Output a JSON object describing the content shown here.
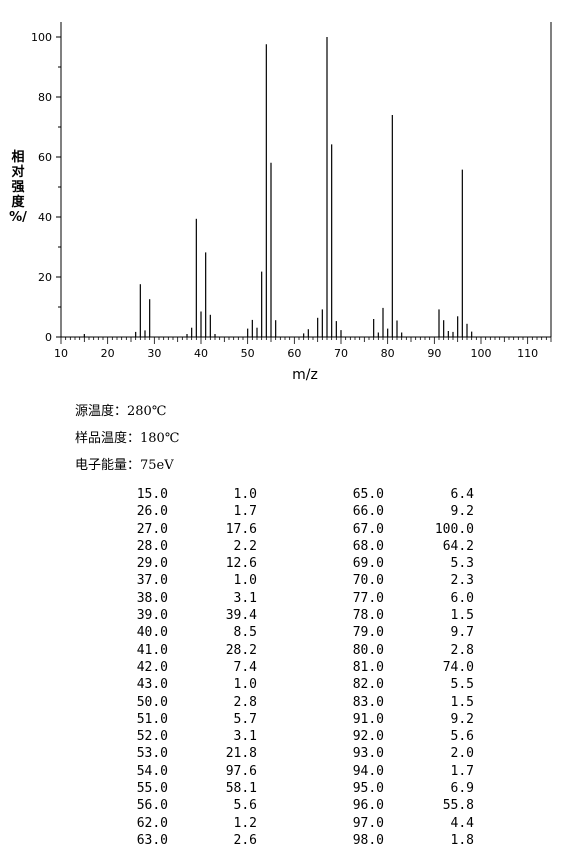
{
  "chart_data": {
    "type": "bar",
    "xlabel": "m/z",
    "ylabel_chars": [
      "相",
      "对",
      "强",
      "度",
      "%/"
    ],
    "xlim": [
      10,
      115
    ],
    "ylim": [
      0,
      100
    ],
    "x_ticks": [
      10,
      20,
      30,
      40,
      50,
      60,
      70,
      80,
      90,
      100,
      110
    ],
    "y_ticks": [
      0,
      20,
      40,
      60,
      80,
      100
    ],
    "peaks": [
      {
        "mz": 15.0,
        "intensity": 1.0
      },
      {
        "mz": 26.0,
        "intensity": 1.7
      },
      {
        "mz": 27.0,
        "intensity": 17.6
      },
      {
        "mz": 28.0,
        "intensity": 2.2
      },
      {
        "mz": 29.0,
        "intensity": 12.6
      },
      {
        "mz": 37.0,
        "intensity": 1.0
      },
      {
        "mz": 38.0,
        "intensity": 3.1
      },
      {
        "mz": 39.0,
        "intensity": 39.4
      },
      {
        "mz": 40.0,
        "intensity": 8.5
      },
      {
        "mz": 41.0,
        "intensity": 28.2
      },
      {
        "mz": 42.0,
        "intensity": 7.4
      },
      {
        "mz": 43.0,
        "intensity": 1.0
      },
      {
        "mz": 50.0,
        "intensity": 2.8
      },
      {
        "mz": 51.0,
        "intensity": 5.7
      },
      {
        "mz": 52.0,
        "intensity": 3.1
      },
      {
        "mz": 53.0,
        "intensity": 21.8
      },
      {
        "mz": 54.0,
        "intensity": 97.6
      },
      {
        "mz": 55.0,
        "intensity": 58.1
      },
      {
        "mz": 56.0,
        "intensity": 5.6
      },
      {
        "mz": 62.0,
        "intensity": 1.2
      },
      {
        "mz": 63.0,
        "intensity": 2.6
      },
      {
        "mz": 65.0,
        "intensity": 6.4
      },
      {
        "mz": 66.0,
        "intensity": 9.2
      },
      {
        "mz": 67.0,
        "intensity": 100.0
      },
      {
        "mz": 68.0,
        "intensity": 64.2
      },
      {
        "mz": 69.0,
        "intensity": 5.3
      },
      {
        "mz": 70.0,
        "intensity": 2.3
      },
      {
        "mz": 77.0,
        "intensity": 6.0
      },
      {
        "mz": 78.0,
        "intensity": 1.5
      },
      {
        "mz": 79.0,
        "intensity": 9.7
      },
      {
        "mz": 80.0,
        "intensity": 2.8
      },
      {
        "mz": 81.0,
        "intensity": 74.0
      },
      {
        "mz": 82.0,
        "intensity": 5.5
      },
      {
        "mz": 83.0,
        "intensity": 1.5
      },
      {
        "mz": 91.0,
        "intensity": 9.2
      },
      {
        "mz": 92.0,
        "intensity": 5.6
      },
      {
        "mz": 93.0,
        "intensity": 2.0
      },
      {
        "mz": 94.0,
        "intensity": 1.7
      },
      {
        "mz": 95.0,
        "intensity": 6.9
      },
      {
        "mz": 96.0,
        "intensity": 55.8
      },
      {
        "mz": 97.0,
        "intensity": 4.4
      },
      {
        "mz": 98.0,
        "intensity": 1.8
      }
    ]
  },
  "conditions": {
    "source_temp": "源温度：280℃",
    "sample_temp": "样品温度：180℃",
    "electron_energy": "电子能量：75eV"
  },
  "peak_table": [
    [
      "15.0",
      "1.0",
      "65.0",
      "6.4"
    ],
    [
      "26.0",
      "1.7",
      "66.0",
      "9.2"
    ],
    [
      "27.0",
      "17.6",
      "67.0",
      "100.0"
    ],
    [
      "28.0",
      "2.2",
      "68.0",
      "64.2"
    ],
    [
      "29.0",
      "12.6",
      "69.0",
      "5.3"
    ],
    [
      "37.0",
      "1.0",
      "70.0",
      "2.3"
    ],
    [
      "38.0",
      "3.1",
      "77.0",
      "6.0"
    ],
    [
      "39.0",
      "39.4",
      "78.0",
      "1.5"
    ],
    [
      "40.0",
      "8.5",
      "79.0",
      "9.7"
    ],
    [
      "41.0",
      "28.2",
      "80.0",
      "2.8"
    ],
    [
      "42.0",
      "7.4",
      "81.0",
      "74.0"
    ],
    [
      "43.0",
      "1.0",
      "82.0",
      "5.5"
    ],
    [
      "50.0",
      "2.8",
      "83.0",
      "1.5"
    ],
    [
      "51.0",
      "5.7",
      "91.0",
      "9.2"
    ],
    [
      "52.0",
      "3.1",
      "92.0",
      "5.6"
    ],
    [
      "53.0",
      "21.8",
      "93.0",
      "2.0"
    ],
    [
      "54.0",
      "97.6",
      "94.0",
      "1.7"
    ],
    [
      "55.0",
      "58.1",
      "95.0",
      "6.9"
    ],
    [
      "56.0",
      "5.6",
      "96.0",
      "55.8"
    ],
    [
      "62.0",
      "1.2",
      "97.0",
      "4.4"
    ],
    [
      "63.0",
      "2.6",
      "98.0",
      "1.8"
    ]
  ]
}
